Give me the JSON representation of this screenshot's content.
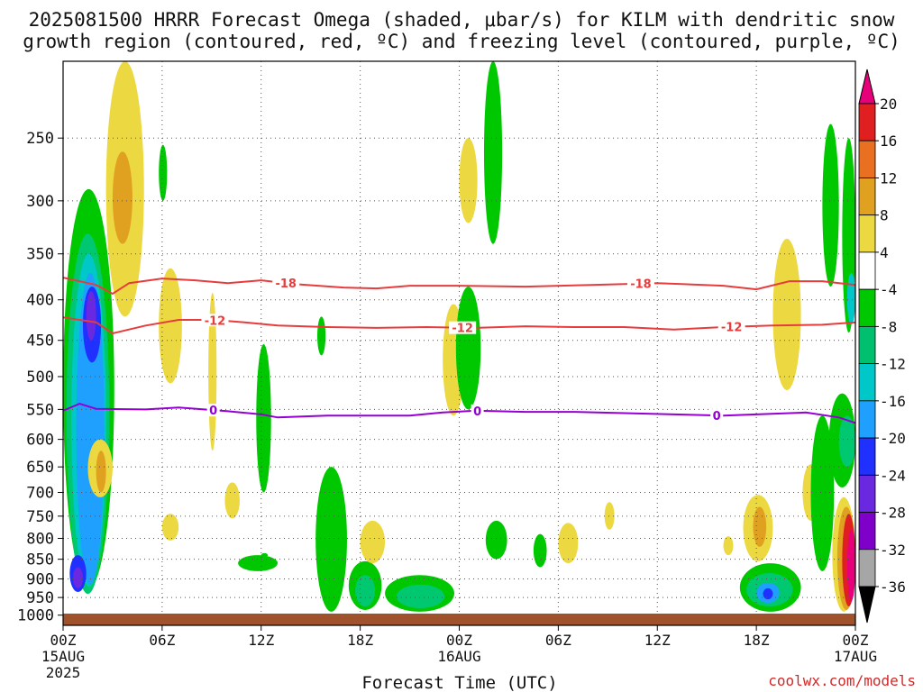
{
  "title": {
    "line1": "2025081500 HRRR Forecast Omega (shaded, μbar/s) for KILM with dendritic snow",
    "line2": "growth region (contoured, red, ºC) and freezing level (contoured, purple, ºC)"
  },
  "xlabel": "Forecast Time (UTC)",
  "credit": "coolwx.com/models",
  "chart_data": {
    "type": "heatmap",
    "y_axis": {
      "ticks": [
        250,
        300,
        350,
        400,
        450,
        500,
        550,
        600,
        650,
        700,
        750,
        800,
        850,
        900,
        950,
        1000
      ],
      "range": [
        200,
        1030
      ],
      "scale": "log",
      "inverted": true
    },
    "x_axis": {
      "range": [
        0,
        48
      ],
      "ticks": [
        {
          "hour": 0,
          "label": "00Z",
          "sub1": "15AUG",
          "sub2": "2025"
        },
        {
          "hour": 6,
          "label": "06Z"
        },
        {
          "hour": 12,
          "label": "12Z"
        },
        {
          "hour": 18,
          "label": "18Z"
        },
        {
          "hour": 24,
          "label": "00Z",
          "sub1": "16AUG"
        },
        {
          "hour": 30,
          "label": "06Z"
        },
        {
          "hour": 36,
          "label": "12Z"
        },
        {
          "hour": 42,
          "label": "18Z"
        },
        {
          "hour": 48,
          "label": "00Z",
          "sub1": "17AUG"
        }
      ]
    },
    "grid": true,
    "colorbar": {
      "bounds": [
        -36,
        -32,
        -28,
        -24,
        -20,
        -16,
        -12,
        -8,
        -4,
        4,
        8,
        12,
        16,
        20
      ],
      "labels": [
        "20",
        "16",
        "12",
        "8",
        "4",
        "-4",
        "-8",
        "-12",
        "-16",
        "-20",
        "-24",
        "-28",
        "-32",
        "-36"
      ],
      "colors": [
        "#000000",
        "#a6a6a6",
        "#7f00c8",
        "#6a28e0",
        "#2030ff",
        "#1fa0ff",
        "#00c8c8",
        "#00c070",
        "#00c800",
        "#ffffff",
        "#ecd840",
        "#e0a020",
        "#e87020",
        "#e02020",
        "#e6007a"
      ]
    },
    "contours": [
      {
        "level": "-18",
        "color": "#e83c3c",
        "label_hours": [
          13.5,
          35
        ],
        "points": [
          [
            0,
            375
          ],
          [
            2,
            383
          ],
          [
            3,
            393
          ],
          [
            4,
            381
          ],
          [
            6,
            376
          ],
          [
            8,
            378
          ],
          [
            10,
            381
          ],
          [
            12,
            378
          ],
          [
            14,
            382
          ],
          [
            17,
            386
          ],
          [
            19,
            387
          ],
          [
            21,
            384
          ],
          [
            24,
            384
          ],
          [
            28,
            385
          ],
          [
            32,
            383
          ],
          [
            36,
            381
          ],
          [
            40,
            384
          ],
          [
            42,
            388
          ],
          [
            44,
            379
          ],
          [
            46,
            379
          ],
          [
            48,
            383
          ]
        ]
      },
      {
        "level": "-12",
        "color": "#e83c3c",
        "label_hours": [
          9.2,
          24.2,
          40.5
        ],
        "points": [
          [
            0,
            421
          ],
          [
            2,
            427
          ],
          [
            3,
            441
          ],
          [
            5,
            431
          ],
          [
            7,
            424
          ],
          [
            9,
            424
          ],
          [
            11,
            427
          ],
          [
            13,
            431
          ],
          [
            16,
            433
          ],
          [
            19,
            434
          ],
          [
            22,
            433
          ],
          [
            25,
            434
          ],
          [
            28,
            432
          ],
          [
            31,
            433
          ],
          [
            34,
            433
          ],
          [
            37,
            436
          ],
          [
            40,
            433
          ],
          [
            43,
            431
          ],
          [
            46,
            430
          ],
          [
            48,
            427
          ]
        ]
      },
      {
        "level": "0",
        "color": "#9400d3",
        "label_hours": [
          9.1,
          25.1,
          39.6
        ],
        "points": [
          [
            0,
            552
          ],
          [
            1,
            541
          ],
          [
            2,
            549
          ],
          [
            5,
            550
          ],
          [
            7,
            547
          ],
          [
            10,
            553
          ],
          [
            12,
            558
          ],
          [
            13,
            563
          ],
          [
            16,
            560
          ],
          [
            19,
            560
          ],
          [
            21,
            560
          ],
          [
            23,
            555
          ],
          [
            25,
            552
          ],
          [
            28,
            554
          ],
          [
            31,
            554
          ],
          [
            34,
            556
          ],
          [
            37,
            558
          ],
          [
            40,
            560
          ],
          [
            42,
            558
          ],
          [
            45,
            555
          ],
          [
            47,
            563
          ],
          [
            48,
            572
          ]
        ]
      }
    ],
    "shaded_regions": [
      {
        "c": "#00c800",
        "h0": 0,
        "h1": 3.1,
        "p0": 290,
        "p1": 925
      },
      {
        "c": "#00c870",
        "h0": 0.2,
        "h1": 2.8,
        "p0": 330,
        "p1": 940
      },
      {
        "c": "#00c8c8",
        "h0": 0.5,
        "h1": 2.6,
        "p0": 350,
        "p1": 920
      },
      {
        "c": "#1fa0ff",
        "h0": 0.8,
        "h1": 2.5,
        "p0": 370,
        "p1": 915
      },
      {
        "c": "#2030ff",
        "h0": 1.2,
        "h1": 2.3,
        "p0": 385,
        "p1": 480
      },
      {
        "c": "#6a28e0",
        "h0": 1.4,
        "h1": 2.0,
        "p0": 390,
        "p1": 450
      },
      {
        "c": "#2030ff",
        "h0": 0.4,
        "h1": 1.4,
        "p0": 840,
        "p1": 935
      },
      {
        "c": "#6a28e0",
        "h0": 0.6,
        "h1": 1.2,
        "p0": 870,
        "p1": 925
      },
      {
        "c": "#ecd840",
        "h0": 2.6,
        "h1": 4.9,
        "p0": 200,
        "p1": 420
      },
      {
        "c": "#e0a020",
        "h0": 3.0,
        "h1": 4.2,
        "p0": 260,
        "p1": 340
      },
      {
        "c": "#ecd840",
        "h0": 5.8,
        "h1": 7.2,
        "p0": 365,
        "p1": 510
      },
      {
        "c": "#ecd840",
        "h0": 1.5,
        "h1": 3.0,
        "p0": 600,
        "p1": 710
      },
      {
        "c": "#e0a020",
        "h0": 2.0,
        "h1": 2.6,
        "p0": 620,
        "p1": 700
      },
      {
        "c": "#00c800",
        "h0": 5.8,
        "h1": 6.3,
        "p0": 255,
        "p1": 300
      },
      {
        "c": "#ecd840",
        "h0": 8.8,
        "h1": 9.3,
        "p0": 392,
        "p1": 620
      },
      {
        "c": "#00c800",
        "h0": 11.7,
        "h1": 12.6,
        "p0": 455,
        "p1": 700
      },
      {
        "c": "#00c800",
        "h0": 10.6,
        "h1": 13.0,
        "p0": 840,
        "p1": 880
      },
      {
        "c": "#ecd840",
        "h0": 6.0,
        "h1": 7.0,
        "p0": 745,
        "p1": 805
      },
      {
        "c": "#ecd840",
        "h0": 9.8,
        "h1": 10.7,
        "p0": 680,
        "p1": 755
      },
      {
        "c": "#00c800",
        "h0": 15.3,
        "h1": 17.2,
        "p0": 650,
        "p1": 990
      },
      {
        "c": "#00c800",
        "h0": 17.3,
        "h1": 19.3,
        "p0": 855,
        "p1": 985
      },
      {
        "c": "#00c870",
        "h0": 17.7,
        "h1": 18.9,
        "p0": 890,
        "p1": 975
      },
      {
        "c": "#00c800",
        "h0": 19.5,
        "h1": 23.7,
        "p0": 890,
        "p1": 990
      },
      {
        "c": "#00c870",
        "h0": 20.2,
        "h1": 23.1,
        "p0": 915,
        "p1": 980
      },
      {
        "c": "#ecd840",
        "h0": 18.0,
        "h1": 19.5,
        "p0": 760,
        "p1": 860
      },
      {
        "c": "#ecd840",
        "h0": 23.0,
        "h1": 24.3,
        "p0": 405,
        "p1": 560
      },
      {
        "c": "#00c800",
        "h0": 23.8,
        "h1": 25.3,
        "p0": 385,
        "p1": 550
      },
      {
        "c": "#00c800",
        "h0": 25.5,
        "h1": 26.6,
        "p0": 200,
        "p1": 340
      },
      {
        "c": "#ecd840",
        "h0": 24.0,
        "h1": 25.1,
        "p0": 250,
        "p1": 320
      },
      {
        "c": "#00c800",
        "h0": 25.6,
        "h1": 26.9,
        "p0": 760,
        "p1": 850
      },
      {
        "c": "#ecd840",
        "h0": 30.0,
        "h1": 31.2,
        "p0": 765,
        "p1": 860
      },
      {
        "c": "#00c800",
        "h0": 28.5,
        "h1": 29.3,
        "p0": 790,
        "p1": 870
      },
      {
        "c": "#ecd840",
        "h0": 43.0,
        "h1": 44.7,
        "p0": 335,
        "p1": 520
      },
      {
        "c": "#ecd840",
        "h0": 41.2,
        "h1": 43.0,
        "p0": 705,
        "p1": 855
      },
      {
        "c": "#e0a020",
        "h0": 41.8,
        "h1": 42.6,
        "p0": 730,
        "p1": 820
      },
      {
        "c": "#00c800",
        "h0": 41.0,
        "h1": 44.7,
        "p0": 860,
        "p1": 990
      },
      {
        "c": "#00c870",
        "h0": 41.4,
        "h1": 44.2,
        "p0": 885,
        "p1": 975
      },
      {
        "c": "#1fa0ff",
        "h0": 42.0,
        "h1": 43.4,
        "p0": 910,
        "p1": 965
      },
      {
        "c": "#2030ff",
        "h0": 42.4,
        "h1": 43.0,
        "p0": 925,
        "p1": 955
      },
      {
        "c": "#ecd840",
        "h0": 44.8,
        "h1": 45.8,
        "p0": 645,
        "p1": 760
      },
      {
        "c": "#00c800",
        "h0": 45.3,
        "h1": 46.7,
        "p0": 560,
        "p1": 880
      },
      {
        "c": "#00c800",
        "h0": 46.0,
        "h1": 47.0,
        "p0": 240,
        "p1": 385
      },
      {
        "c": "#00c800",
        "h0": 46.4,
        "h1": 48,
        "p0": 525,
        "p1": 690
      },
      {
        "c": "#00c870",
        "h0": 47.0,
        "h1": 48,
        "p0": 560,
        "p1": 650
      },
      {
        "c": "#ecd840",
        "h0": 46.6,
        "h1": 48,
        "p0": 710,
        "p1": 990
      },
      {
        "c": "#e0a020",
        "h0": 46.9,
        "h1": 48,
        "p0": 730,
        "p1": 985
      },
      {
        "c": "#e02020",
        "h0": 47.2,
        "h1": 48,
        "p0": 745,
        "p1": 975
      },
      {
        "c": "#e6007a",
        "h0": 47.5,
        "h1": 48,
        "p0": 780,
        "p1": 960
      },
      {
        "c": "#00c800",
        "h0": 47.2,
        "h1": 48,
        "p0": 250,
        "p1": 440
      },
      {
        "c": "#00c8c8",
        "h0": 47.5,
        "h1": 48,
        "p0": 370,
        "p1": 430
      },
      {
        "c": "#00c800",
        "h0": 15.4,
        "h1": 15.9,
        "p0": 420,
        "p1": 470
      },
      {
        "c": "#ecd840",
        "h0": 40.0,
        "h1": 40.6,
        "p0": 795,
        "p1": 840
      },
      {
        "c": "#ecd840",
        "h0": 32.8,
        "h1": 33.4,
        "p0": 720,
        "p1": 780
      },
      {
        "c": "#00c800",
        "h0": 12.0,
        "h1": 12.4,
        "p0": 835,
        "p1": 845
      }
    ]
  }
}
